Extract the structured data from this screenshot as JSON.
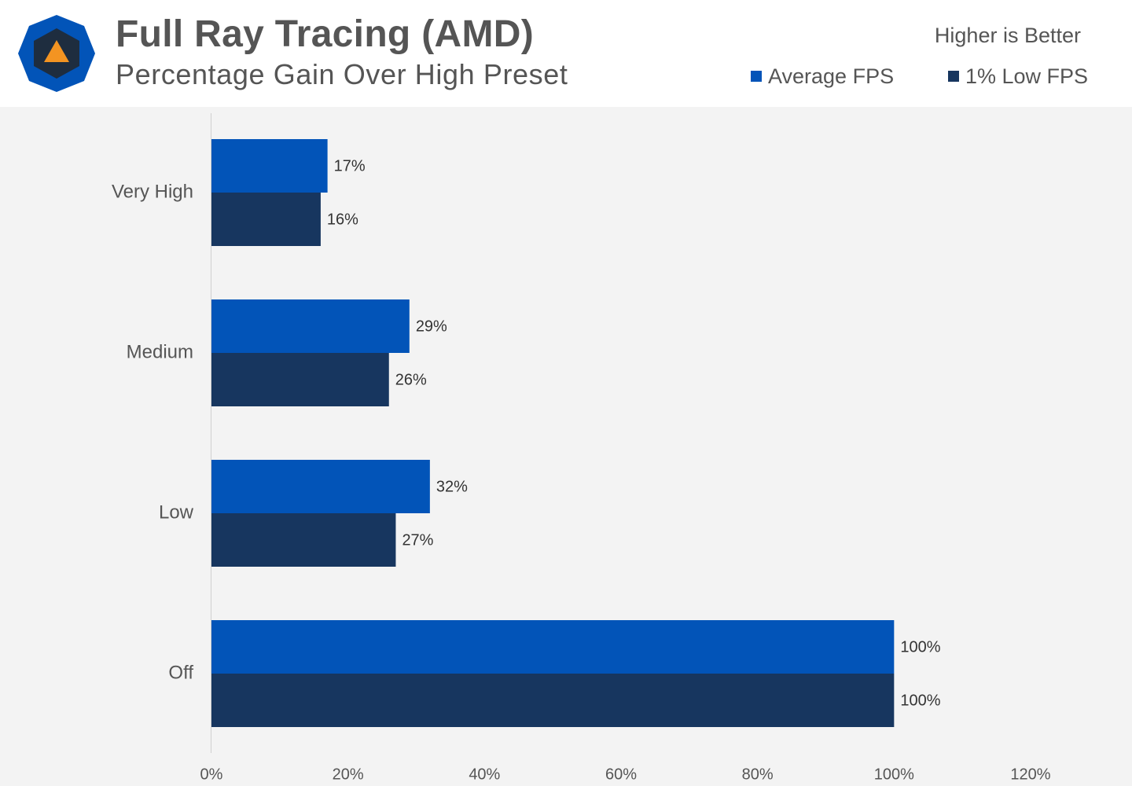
{
  "header": {
    "title": "Full Ray Tracing (AMD)",
    "subtitle": "Percentage Gain Over High Preset",
    "note": "Higher is Better"
  },
  "colors": {
    "average": "#0254b8",
    "low": "#17365f",
    "logo_outer": "#0254b8",
    "logo_inner": "#1e2d3f",
    "logo_triangle": "#f39422"
  },
  "chart_data": {
    "type": "bar",
    "orientation": "horizontal",
    "categories": [
      "Very High",
      "Medium",
      "Low",
      "Off"
    ],
    "series": [
      {
        "name": "Average FPS",
        "values": [
          17,
          29,
          32,
          100
        ],
        "labels": [
          "17%",
          "29%",
          "32%",
          "100%"
        ]
      },
      {
        "name": "1% Low FPS",
        "values": [
          16,
          26,
          27,
          100
        ],
        "labels": [
          "16%",
          "26%",
          "27%",
          "100%"
        ]
      }
    ],
    "xlim": [
      0,
      120
    ],
    "xticks": [
      0,
      20,
      40,
      60,
      80,
      100,
      120
    ],
    "xtick_labels": [
      "0%",
      "20%",
      "40%",
      "60%",
      "80%",
      "100%",
      "120%"
    ],
    "legend_position": "top-right",
    "grid": false
  }
}
